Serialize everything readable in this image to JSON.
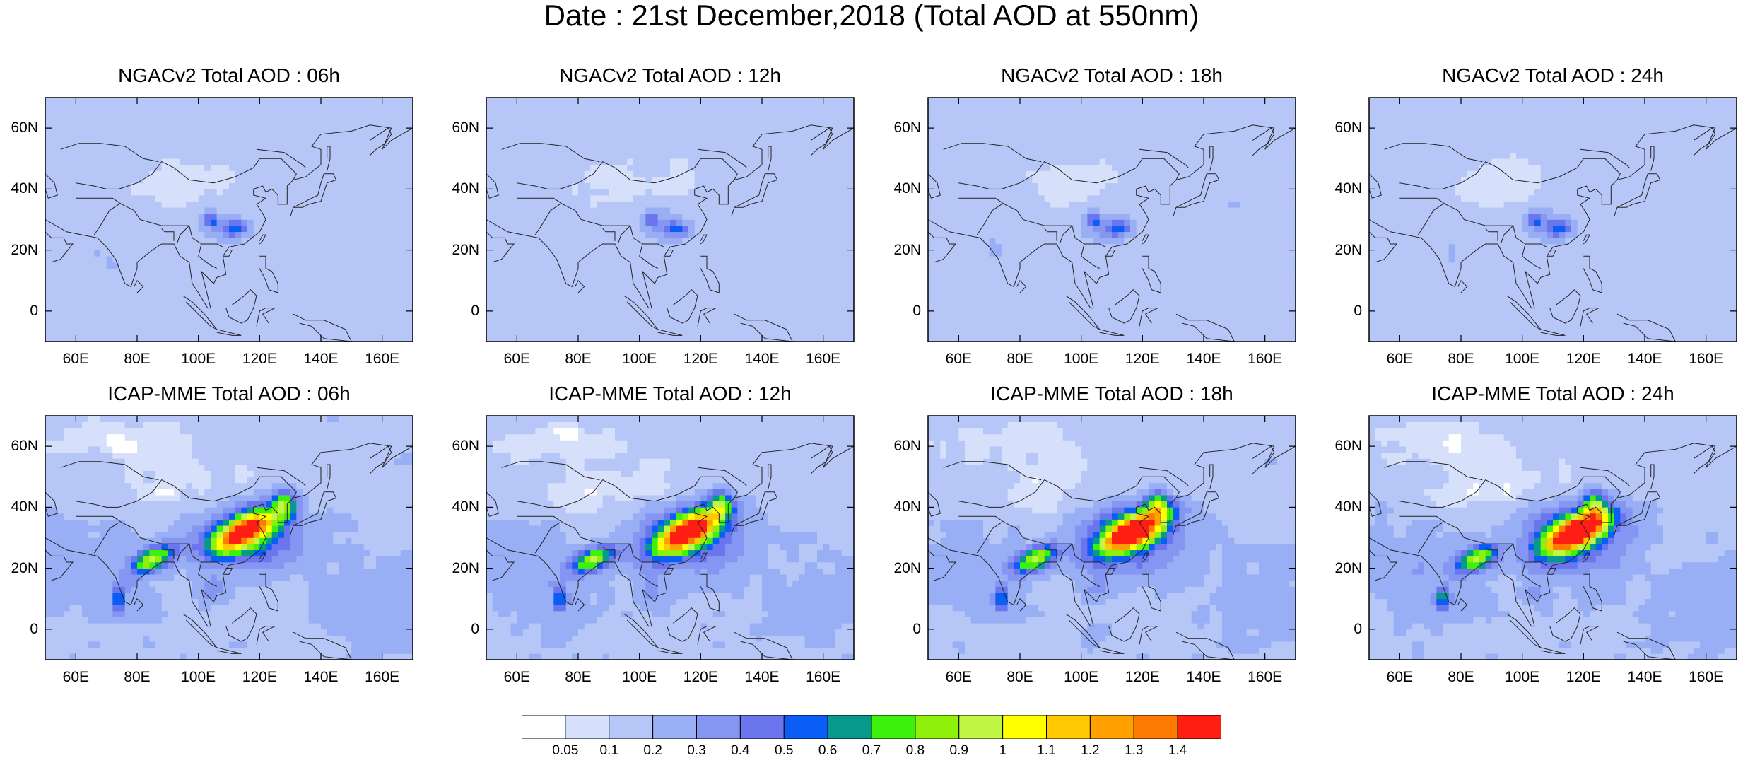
{
  "title": "Date : 21st December,2018 (Total AOD at 550nm)",
  "panels": [
    {
      "title": "NGACv2 Total AOD : 06h",
      "model": "ngac",
      "hour": "06h"
    },
    {
      "title": "NGACv2 Total AOD : 12h",
      "model": "ngac",
      "hour": "12h"
    },
    {
      "title": "NGACv2 Total AOD : 18h",
      "model": "ngac",
      "hour": "18h"
    },
    {
      "title": "NGACv2 Total AOD : 24h",
      "model": "ngac",
      "hour": "24h"
    },
    {
      "title": "ICAP-MME Total AOD : 06h",
      "model": "icap",
      "hour": "06h"
    },
    {
      "title": "ICAP-MME Total AOD : 12h",
      "model": "icap",
      "hour": "12h"
    },
    {
      "title": "ICAP-MME Total AOD : 18h",
      "model": "icap",
      "hour": "18h"
    },
    {
      "title": "ICAP-MME Total AOD : 24h",
      "model": "icap",
      "hour": "24h"
    }
  ],
  "lat_ticks": [
    "60N",
    "40N",
    "20N",
    "0"
  ],
  "lon_ticks": [
    "60E",
    "80E",
    "100E",
    "120E",
    "140E",
    "160E"
  ],
  "colorbar": {
    "levels": [
      "0.05",
      "0.1",
      "0.2",
      "0.3",
      "0.4",
      "0.5",
      "0.6",
      "0.7",
      "0.8",
      "0.9",
      "1",
      "1.1",
      "1.2",
      "1.3",
      "1.4"
    ],
    "colors": [
      "#ffffff",
      "#d6e0fb",
      "#b6c6f7",
      "#98aef5",
      "#8595f2",
      "#6b75ee",
      "#0a5ef5",
      "#079a8c",
      "#3cf20d",
      "#8ff00c",
      "#c0f744",
      "#ffff00",
      "#ffc800",
      "#ffa000",
      "#ff7a00",
      "#ff1e14"
    ]
  }
}
